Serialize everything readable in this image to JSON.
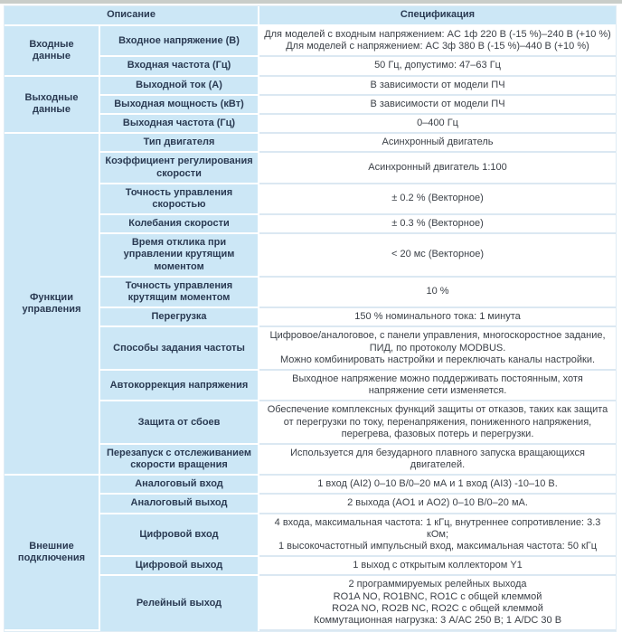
{
  "colors": {
    "cell_blue": "#cce7f6",
    "label_text": "#2a3a52",
    "value_text": "#3c4148",
    "row_divider": "#dbe8f2",
    "table_border": "#dfecf5",
    "top_strip": "#c9cdc9"
  },
  "table": {
    "header": {
      "description": "Описание",
      "specification": "Спецификация"
    },
    "groups": [
      {
        "label": "Входные данные",
        "rows": [
          {
            "param": "Входное напряжение (В)",
            "value": "Для моделей с входным напряжением: AC 1ф 220 В (-15 %)–240 В (+10 %)\nДля моделей с напряжением: AC 3ф 380 В (-15 %)–440 В (+10 %)"
          },
          {
            "param": "Входная частота (Гц)",
            "value": "50 Гц, допустимо: 47–63 Гц"
          }
        ]
      },
      {
        "label": "Выходные данные",
        "rows": [
          {
            "param": "Выходной ток (А)",
            "value": "В зависимости от модели ПЧ"
          },
          {
            "param": "Выходная мощность (кВт)",
            "value": "В зависимости от модели ПЧ"
          },
          {
            "param": "Выходная частота (Гц)",
            "value": "0–400 Гц"
          }
        ]
      },
      {
        "label": "Функции управления",
        "rows": [
          {
            "param": "Тип двигателя",
            "value": "Асинхронный двигатель"
          },
          {
            "param": "Коэффициент регулирования скорости",
            "value": "Асинхронный двигатель 1:100"
          },
          {
            "param": "Точность управления скоростью",
            "value": "± 0.2 % (Векторное)"
          },
          {
            "param": "Колебания скорости",
            "value": "± 0.3 % (Векторное)"
          },
          {
            "param": "Время отклика при управлении крутящим моментом",
            "value": "< 20 мс (Векторное)"
          },
          {
            "param": "Точность управления крутящим моментом",
            "value": "10 %"
          },
          {
            "param": "Перегрузка",
            "value": "150 % номинального тока: 1 минута"
          },
          {
            "param": "Способы задания частоты",
            "value": "Цифровое/аналоговое, с панели управления, многоскоростное задание, ПИД, по протоколу MODBUS.\nМожно комбинировать настройки и переключать каналы настройки."
          },
          {
            "param": "Автокоррекция напряжения",
            "value": "Выходное напряжение можно поддерживать постоянным, хотя напряжение сети изменяется."
          },
          {
            "param": "Защита от сбоев",
            "value": "Обеспечение комплексных функций защиты от отказов, таких как защита от перегрузки по току, перенапряжения, пониженного напряжения, перегрева, фазовых потерь и перегрузки."
          },
          {
            "param": "Перезапуск с отслеживанием скорости вращения",
            "value": "Используется для безударного плавного запуска вращающихся двигателей."
          }
        ]
      },
      {
        "label": "Внешние подключения",
        "rows": [
          {
            "param": "Аналоговый вход",
            "value": "1 вход (AI2) 0–10 В/0–20 мА и 1 вход (AI3) -10–10 В."
          },
          {
            "param": "Аналоговый выход",
            "value": "2 выхода (AO1 и AO2) 0–10 В/0–20 мА."
          },
          {
            "param": "Цифровой вход",
            "value": "4 входа, максимальная частота: 1 кГц, внутреннее сопротивление: 3.3 кОм;\n1 высокочастотный импульсный вход, максимальная частота: 50 кГц"
          },
          {
            "param": "Цифровой выход",
            "value": "1 выход с открытым коллектором Y1"
          },
          {
            "param": "Релейный выход",
            "value": "2 программируемых релейных выхода\nRO1A NO, RO1BNC, RO1C с общей клеммой\nRO2A NO, RO2B NC, RO2C с общей клеммой\nКоммутационная нагрузка: 3 A/AC 250 В; 1 A/DC 30 В"
          }
        ]
      }
    ]
  }
}
